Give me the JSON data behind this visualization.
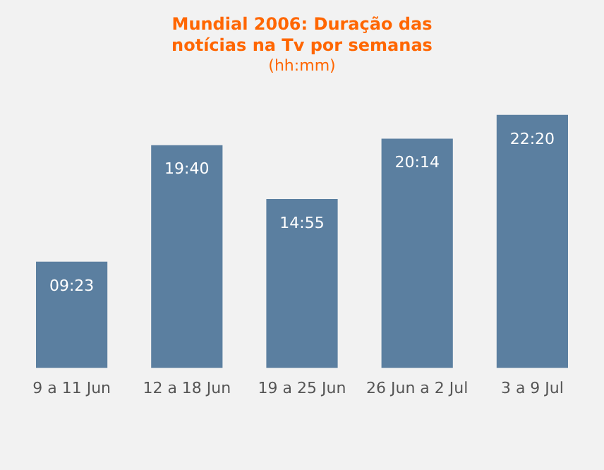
{
  "chart_data": {
    "type": "bar",
    "title": "Mundial 2006: Duração das notícias na Tv por semanas",
    "subtitle": "(hh:mm)",
    "categories": [
      "9 a 11 Jun",
      "12 a 18 Jun",
      "19 a 25 Jun",
      "26 Jun a 2 Jul",
      "3 a 9 Jul"
    ],
    "values": [
      9.3833,
      19.6667,
      14.9167,
      20.2333,
      22.3333
    ],
    "value_labels": [
      "09:23",
      "19:40",
      "14:55",
      "20:14",
      "22:20"
    ],
    "color": "#5b7fa0",
    "tick_labels": "x",
    "grid": false,
    "legend": false
  }
}
